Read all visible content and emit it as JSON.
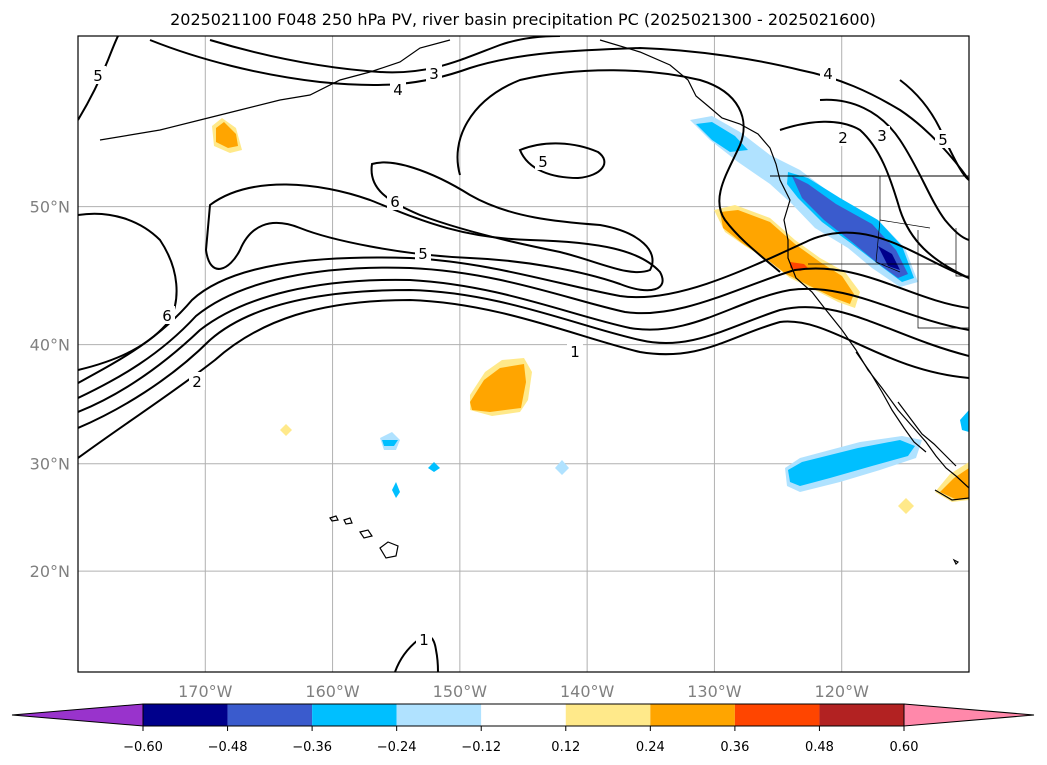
{
  "title": "2025021100 F048 250 hPa PV, river basin precipitation PC (2025021300 - 2025021600)",
  "chart_data": {
    "type": "contour-map",
    "title": "2025021100 F048 250 hPa PV, river basin precipitation PC (2025021300 - 2025021600)",
    "map_extent": {
      "lon": [
        -180,
        -110
      ],
      "lat": [
        10,
        60
      ]
    },
    "lat_ticks": [
      "20°N",
      "30°N",
      "40°N",
      "50°N"
    ],
    "lon_ticks": [
      "170°W",
      "160°W",
      "150°W",
      "140°W",
      "130°W",
      "120°W"
    ],
    "gridlines": true,
    "pv_contour_labels": [
      "5",
      "3",
      "4",
      "4",
      "2",
      "3",
      "5",
      "5",
      "6",
      "5",
      "6",
      "2",
      "1",
      "1"
    ],
    "colorbar": {
      "orientation": "horizontal",
      "extend": "both",
      "tick_labels": [
        "−0.60",
        "−0.48",
        "−0.36",
        "−0.24",
        "−0.12",
        "0.12",
        "0.24",
        "0.36",
        "0.48",
        "0.60"
      ],
      "colors": [
        "#9933cc",
        "#00008b",
        "#3a5bcd",
        "#00bfff",
        "#b0e2ff",
        "#ffffff",
        "#ffe98a",
        "#ffa500",
        "#ff4500",
        "#b22222",
        "#ff88aa"
      ]
    }
  }
}
